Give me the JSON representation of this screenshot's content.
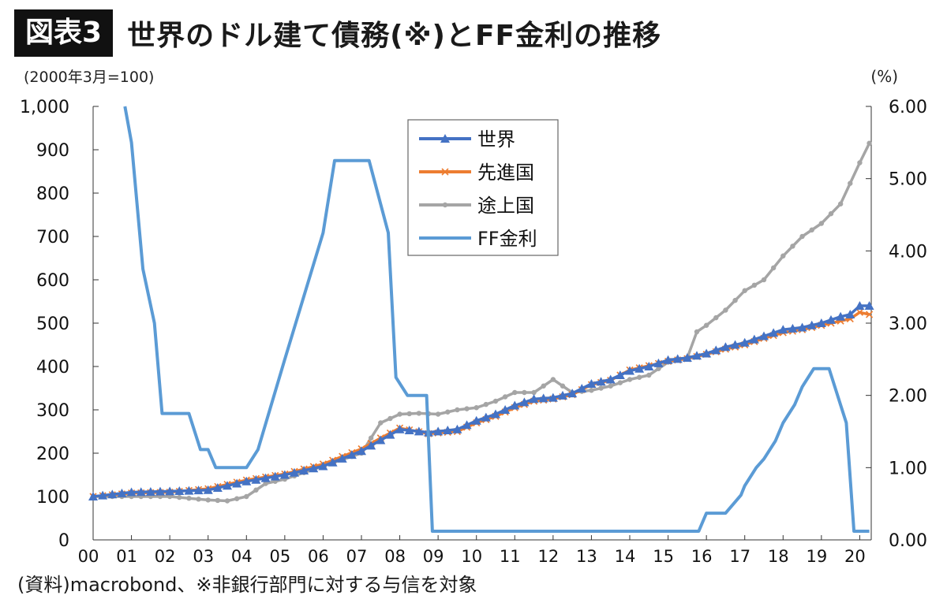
{
  "header": {
    "badge": "図表3",
    "title": "世界のドル建て債務(※)とFF金利の推移"
  },
  "source": "(資料)macrobond、※非銀行部門に対する与信を対象",
  "chart_data": {
    "type": "line",
    "left_axis_label": "(2000年3月=100)",
    "right_axis_label": "(%)",
    "x_tick_labels": [
      "00",
      "01",
      "02",
      "03",
      "04",
      "05",
      "06",
      "07",
      "08",
      "09",
      "10",
      "11",
      "12",
      "13",
      "14",
      "15",
      "16",
      "17",
      "18",
      "19",
      "20"
    ],
    "y_left": {
      "min": 0,
      "max": 1000,
      "ticks": [
        "0",
        "100",
        "200",
        "300",
        "400",
        "500",
        "600",
        "700",
        "800",
        "900",
        "1,000"
      ]
    },
    "y_right": {
      "min": 0,
      "max": 6,
      "ticks": [
        "0.00",
        "1.00",
        "2.00",
        "3.00",
        "4.00",
        "5.00",
        "6.00"
      ]
    },
    "legend_position": "top-center",
    "series": [
      {
        "name": "世界",
        "axis": "left",
        "color": "#4472c4",
        "marker": "triangle",
        "x": [
          2000.0,
          2001.0,
          2002.0,
          2003.0,
          2004.0,
          2005.0,
          2006.0,
          2007.0,
          2007.5,
          2008.0,
          2008.75,
          2009.5,
          2010.0,
          2010.5,
          2011.0,
          2011.5,
          2012.0,
          2012.5,
          2013.0,
          2013.5,
          2014.0,
          2014.5,
          2015.0,
          2015.5,
          2016.0,
          2016.5,
          2017.0,
          2017.5,
          2018.0,
          2018.5,
          2019.0,
          2019.5,
          2019.75,
          2020.0,
          2020.25
        ],
        "y": [
          100,
          110,
          112,
          115,
          135,
          150,
          170,
          205,
          230,
          255,
          248,
          255,
          275,
          290,
          310,
          325,
          328,
          338,
          360,
          370,
          390,
          400,
          415,
          420,
          430,
          445,
          455,
          470,
          485,
          490,
          500,
          515,
          520,
          540,
          540
        ]
      },
      {
        "name": "先進国",
        "axis": "left",
        "color": "#ed7d31",
        "marker": "x",
        "x": [
          2000.0,
          2001.0,
          2002.0,
          2003.0,
          2004.0,
          2005.0,
          2006.0,
          2007.0,
          2007.5,
          2008.0,
          2008.75,
          2009.5,
          2010.0,
          2010.5,
          2011.0,
          2011.5,
          2012.0,
          2012.5,
          2013.0,
          2013.5,
          2014.0,
          2014.5,
          2015.0,
          2015.5,
          2016.0,
          2016.5,
          2017.0,
          2017.5,
          2018.0,
          2018.5,
          2019.0,
          2019.5,
          2019.75,
          2020.0,
          2020.25
        ],
        "y": [
          100,
          108,
          110,
          118,
          138,
          152,
          175,
          210,
          235,
          258,
          245,
          250,
          270,
          285,
          305,
          320,
          325,
          335,
          358,
          368,
          392,
          402,
          412,
          418,
          428,
          440,
          450,
          465,
          478,
          485,
          495,
          505,
          510,
          525,
          520
        ]
      },
      {
        "name": "途上国",
        "axis": "left",
        "color": "#a5a5a5",
        "marker": "circle",
        "x": [
          2000.0,
          2001.0,
          2002.0,
          2003.0,
          2003.5,
          2004.0,
          2004.5,
          2005.0,
          2006.0,
          2007.0,
          2007.5,
          2008.0,
          2008.5,
          2009.0,
          2009.5,
          2010.0,
          2010.5,
          2011.0,
          2011.5,
          2012.0,
          2012.5,
          2013.0,
          2013.5,
          2014.0,
          2014.5,
          2015.0,
          2015.5,
          2015.75,
          2016.0,
          2016.5,
          2017.0,
          2017.5,
          2018.0,
          2018.5,
          2019.0,
          2019.5,
          2020.0,
          2020.25
        ],
        "y": [
          100,
          100,
          100,
          92,
          90,
          100,
          130,
          140,
          170,
          200,
          270,
          290,
          292,
          290,
          300,
          305,
          320,
          340,
          340,
          370,
          340,
          345,
          355,
          370,
          380,
          410,
          420,
          480,
          495,
          530,
          575,
          600,
          655,
          700,
          730,
          775,
          870,
          915
        ]
      },
      {
        "name": "FF金利",
        "axis": "right",
        "color": "#5b9bd5",
        "marker": "none",
        "x": [
          2000.83,
          2001.0,
          2001.3,
          2001.6,
          2001.8,
          2002.5,
          2002.8,
          2003.0,
          2003.2,
          2003.5,
          2004.0,
          2004.3,
          2005.0,
          2006.0,
          2006.3,
          2007.0,
          2007.2,
          2007.7,
          2007.9,
          2008.2,
          2008.7,
          2008.85,
          2009.5,
          2010.5,
          2011.5,
          2012.5,
          2013.5,
          2014.5,
          2015.8,
          2016.0,
          2016.5,
          2016.9,
          2017.0,
          2017.3,
          2017.5,
          2017.8,
          2018.0,
          2018.3,
          2018.5,
          2018.8,
          2019.2,
          2019.5,
          2019.65,
          2019.85,
          2019.95,
          2020.25
        ],
        "y": [
          6.0,
          5.5,
          3.75,
          3.0,
          1.75,
          1.75,
          1.25,
          1.25,
          1.0,
          1.0,
          1.0,
          1.25,
          2.5,
          4.25,
          5.25,
          5.25,
          5.25,
          4.25,
          2.25,
          2.0,
          2.0,
          0.12,
          0.12,
          0.12,
          0.12,
          0.12,
          0.12,
          0.12,
          0.12,
          0.37,
          0.37,
          0.62,
          0.75,
          1.0,
          1.12,
          1.37,
          1.62,
          1.87,
          2.12,
          2.37,
          2.37,
          1.87,
          1.62,
          0.12,
          0.12,
          0.12
        ]
      }
    ]
  }
}
